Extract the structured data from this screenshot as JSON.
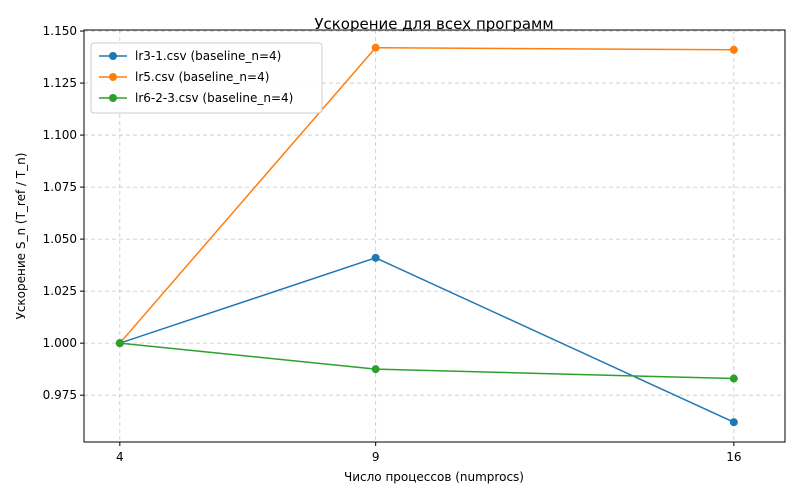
{
  "chart_data": {
    "type": "line",
    "title": "Ускорение для всех программ",
    "xlabel": "Число процессов (numprocs)",
    "ylabel": "Ускорение S_n (T_ref / T_n)",
    "x": [
      4,
      9,
      16
    ],
    "xlim": [
      3.3,
      17.0
    ],
    "ylim": [
      0.9525,
      1.1505
    ],
    "yticks": [
      "0.975",
      "1.000",
      "1.025",
      "1.050",
      "1.075",
      "1.100",
      "1.125",
      "1.150"
    ],
    "xticks": [
      "4",
      "9",
      "16"
    ],
    "grid": true,
    "legend_position": "top-left",
    "series": [
      {
        "name": "lr3-1.csv (baseline_n=4)",
        "color": "#1f77b4",
        "values": [
          1.0,
          1.041,
          0.962
        ]
      },
      {
        "name": "lr5.csv (baseline_n=4)",
        "color": "#ff7f0e",
        "values": [
          1.0,
          1.142,
          1.141
        ]
      },
      {
        "name": "lr6-2-3.csv (baseline_n=4)",
        "color": "#2ca02c",
        "values": [
          1.0,
          0.9875,
          0.983
        ]
      }
    ]
  }
}
